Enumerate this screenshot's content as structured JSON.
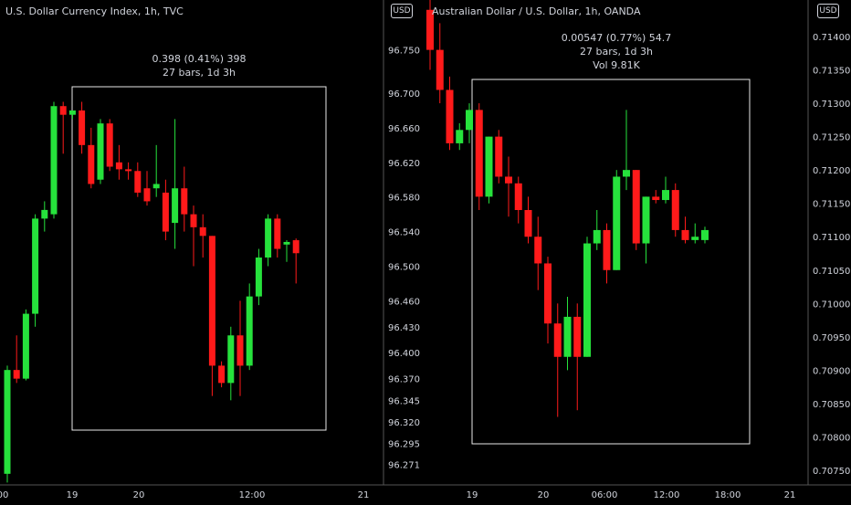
{
  "left": {
    "title": "U.S. Dollar Currency Index, 1h, TVC",
    "currency_badge": "USD",
    "measure": {
      "line1": "0.398 (0.41%) 398",
      "line2": "27 bars, 1d 3h"
    }
  },
  "right": {
    "title": "Australian Dollar / U.S. Dollar, 1h, OANDA",
    "currency_badge": "USD",
    "measure": {
      "line1": "0.00547 (0.77%) 54.7",
      "line2": "27 bars, 1d 3h",
      "line3": "Vol 9.81K"
    }
  },
  "colors": {
    "up": "#26e23c",
    "down": "#ff1a1a",
    "background": "#000000",
    "text": "#d1d4dc",
    "box": "#e8e8e8"
  },
  "chart_data": [
    {
      "type": "candlestick",
      "title": "U.S. Dollar Currency Index, 1h, TVC",
      "y_axis_ticks": [
        96.271,
        96.295,
        96.32,
        96.345,
        96.37,
        96.4,
        96.43,
        96.46,
        96.5,
        96.54,
        96.58,
        96.62,
        96.66,
        96.7,
        96.75
      ],
      "y_axis_ticks_text": [
        "96.271",
        "96.295",
        "96.320",
        "96.345",
        "96.370",
        "96.400",
        "96.430",
        "96.460",
        "96.500",
        "96.540",
        "96.580",
        "96.620",
        "96.660",
        "96.700",
        "96.750"
      ],
      "x_axis_labels": [
        "00",
        "19",
        "20",
        "12:00",
        "21"
      ],
      "ohlc": [
        {
          "o": 96.26,
          "h": 96.385,
          "l": 96.25,
          "c": 96.38
        },
        {
          "o": 96.38,
          "h": 96.42,
          "l": 96.365,
          "c": 96.37
        },
        {
          "o": 96.37,
          "h": 96.45,
          "l": 96.368,
          "c": 96.445
        },
        {
          "o": 96.445,
          "h": 96.56,
          "l": 96.43,
          "c": 96.555
        },
        {
          "o": 96.555,
          "h": 96.575,
          "l": 96.54,
          "c": 96.565
        },
        {
          "o": 96.56,
          "h": 96.69,
          "l": 96.555,
          "c": 96.685
        },
        {
          "o": 96.685,
          "h": 96.69,
          "l": 96.63,
          "c": 96.675
        },
        {
          "o": 96.675,
          "h": 96.68,
          "l": 96.67,
          "c": 96.68
        },
        {
          "o": 96.68,
          "h": 96.69,
          "l": 96.63,
          "c": 96.64
        },
        {
          "o": 96.64,
          "h": 96.66,
          "l": 96.59,
          "c": 96.595
        },
        {
          "o": 96.6,
          "h": 96.67,
          "l": 96.595,
          "c": 96.665
        },
        {
          "o": 96.665,
          "h": 96.67,
          "l": 96.61,
          "c": 96.615
        },
        {
          "o": 96.62,
          "h": 96.64,
          "l": 96.6,
          "c": 96.612
        },
        {
          "o": 96.612,
          "h": 96.62,
          "l": 96.6,
          "c": 96.61
        },
        {
          "o": 96.61,
          "h": 96.62,
          "l": 96.58,
          "c": 96.585
        },
        {
          "o": 96.59,
          "h": 96.61,
          "l": 96.57,
          "c": 96.575
        },
        {
          "o": 96.59,
          "h": 96.64,
          "l": 96.58,
          "c": 96.595
        },
        {
          "o": 96.585,
          "h": 96.6,
          "l": 96.53,
          "c": 96.54
        },
        {
          "o": 96.55,
          "h": 96.67,
          "l": 96.52,
          "c": 96.59
        },
        {
          "o": 96.59,
          "h": 96.615,
          "l": 96.54,
          "c": 96.56
        },
        {
          "o": 96.56,
          "h": 96.57,
          "l": 96.5,
          "c": 96.545
        },
        {
          "o": 96.545,
          "h": 96.56,
          "l": 96.51,
          "c": 96.535
        },
        {
          "o": 96.535,
          "h": 96.535,
          "l": 96.35,
          "c": 96.385
        },
        {
          "o": 96.385,
          "h": 96.39,
          "l": 96.36,
          "c": 96.365
        },
        {
          "o": 96.365,
          "h": 96.43,
          "l": 96.345,
          "c": 96.42
        },
        {
          "o": 96.42,
          "h": 96.46,
          "l": 96.35,
          "c": 96.385
        },
        {
          "o": 96.385,
          "h": 96.48,
          "l": 96.38,
          "c": 96.465
        },
        {
          "o": 96.465,
          "h": 96.52,
          "l": 96.455,
          "c": 96.51
        },
        {
          "o": 96.51,
          "h": 96.56,
          "l": 96.5,
          "c": 96.555
        },
        {
          "o": 96.555,
          "h": 96.56,
          "l": 96.51,
          "c": 96.52
        },
        {
          "o": 96.525,
          "h": 96.53,
          "l": 96.505,
          "c": 96.528
        },
        {
          "o": 96.53,
          "h": 96.532,
          "l": 96.48,
          "c": 96.515
        }
      ]
    },
    {
      "type": "candlestick",
      "title": "Australian Dollar / U.S. Dollar, 1h, OANDA",
      "y_axis_ticks": [
        0.7075,
        0.708,
        0.7085,
        0.709,
        0.7095,
        0.71,
        0.7105,
        0.711,
        0.7115,
        0.712,
        0.7125,
        0.713,
        0.7135,
        0.714
      ],
      "y_axis_ticks_text": [
        "0.70750",
        "0.70800",
        "0.70850",
        "0.70900",
        "0.70950",
        "0.71000",
        "0.71050",
        "0.71100",
        "0.71150",
        "0.71200",
        "0.71250",
        "0.71300",
        "0.71350",
        "0.71400"
      ],
      "x_axis_labels": [
        "19",
        "20",
        "06:00",
        "12:00",
        "18:00",
        "21"
      ],
      "ohlc": [
        {
          "o": 0.7144,
          "h": 0.7146,
          "l": 0.7135,
          "c": 0.7138
        },
        {
          "o": 0.7138,
          "h": 0.7142,
          "l": 0.713,
          "c": 0.7132
        },
        {
          "o": 0.7132,
          "h": 0.7134,
          "l": 0.7123,
          "c": 0.7124
        },
        {
          "o": 0.7124,
          "h": 0.7127,
          "l": 0.7123,
          "c": 0.7126
        },
        {
          "o": 0.7126,
          "h": 0.713,
          "l": 0.7124,
          "c": 0.7129
        },
        {
          "o": 0.7129,
          "h": 0.713,
          "l": 0.7114,
          "c": 0.7116
        },
        {
          "o": 0.7116,
          "h": 0.7125,
          "l": 0.7115,
          "c": 0.7125
        },
        {
          "o": 0.7125,
          "h": 0.7126,
          "l": 0.7118,
          "c": 0.7119
        },
        {
          "o": 0.7119,
          "h": 0.7122,
          "l": 0.7113,
          "c": 0.7118
        },
        {
          "o": 0.7118,
          "h": 0.7119,
          "l": 0.7112,
          "c": 0.7114
        },
        {
          "o": 0.7114,
          "h": 0.7116,
          "l": 0.7109,
          "c": 0.711
        },
        {
          "o": 0.711,
          "h": 0.7113,
          "l": 0.7102,
          "c": 0.7106
        },
        {
          "o": 0.7106,
          "h": 0.7107,
          "l": 0.7094,
          "c": 0.7097
        },
        {
          "o": 0.7097,
          "h": 0.71,
          "l": 0.7083,
          "c": 0.7092
        },
        {
          "o": 0.7092,
          "h": 0.7101,
          "l": 0.709,
          "c": 0.7098
        },
        {
          "o": 0.7098,
          "h": 0.71,
          "l": 0.7084,
          "c": 0.7092
        },
        {
          "o": 0.7092,
          "h": 0.711,
          "l": 0.7092,
          "c": 0.7109
        },
        {
          "o": 0.7109,
          "h": 0.7114,
          "l": 0.7108,
          "c": 0.7111
        },
        {
          "o": 0.7111,
          "h": 0.7112,
          "l": 0.7103,
          "c": 0.7105
        },
        {
          "o": 0.7105,
          "h": 0.712,
          "l": 0.7105,
          "c": 0.7119
        },
        {
          "o": 0.7119,
          "h": 0.7129,
          "l": 0.7117,
          "c": 0.712
        },
        {
          "o": 0.712,
          "h": 0.712,
          "l": 0.7108,
          "c": 0.7109
        },
        {
          "o": 0.7109,
          "h": 0.7116,
          "l": 0.7106,
          "c": 0.7116
        },
        {
          "o": 0.7116,
          "h": 0.7117,
          "l": 0.7115,
          "c": 0.71155
        },
        {
          "o": 0.71155,
          "h": 0.7119,
          "l": 0.7115,
          "c": 0.7117
        },
        {
          "o": 0.7117,
          "h": 0.7118,
          "l": 0.711,
          "c": 0.7111
        },
        {
          "o": 0.7111,
          "h": 0.7113,
          "l": 0.7109,
          "c": 0.71095
        },
        {
          "o": 0.71095,
          "h": 0.7112,
          "l": 0.7109,
          "c": 0.711
        },
        {
          "o": 0.71095,
          "h": 0.71115,
          "l": 0.7109,
          "c": 0.7111
        }
      ]
    }
  ]
}
